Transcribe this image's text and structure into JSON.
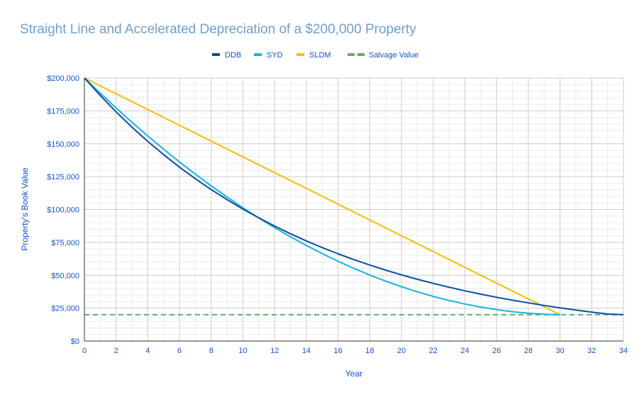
{
  "chart_data": {
    "type": "line",
    "title": "Straight Line and Accelerated Depreciation of a $200,000 Property",
    "xlabel": "Year",
    "ylabel": "Property's Book Value",
    "xlim": [
      0,
      34
    ],
    "ylim": [
      0,
      200000
    ],
    "x_ticks": [
      "0",
      "2",
      "4",
      "6",
      "8",
      "10",
      "12",
      "14",
      "16",
      "18",
      "20",
      "22",
      "24",
      "26",
      "28",
      "30",
      "32",
      "34"
    ],
    "y_ticks": [
      "$0",
      "$25,000",
      "$50,000",
      "$75,000",
      "$100,000",
      "$125,000",
      "$150,000",
      "$175,000",
      "$200,000"
    ],
    "grid": true,
    "legend_position": "top",
    "colors": {
      "title": "#6f9fd0",
      "axis_text": "#1155cc"
    },
    "series": [
      {
        "name": "DDB",
        "color": "#0b4ea2",
        "dashed": false,
        "x": [
          0,
          1,
          2,
          3,
          4,
          5,
          6,
          7,
          8,
          9,
          10,
          11,
          12,
          13,
          14,
          15,
          16,
          17,
          18,
          19,
          20,
          21,
          22,
          23,
          24,
          25,
          26,
          27,
          28,
          29,
          30,
          31,
          32,
          33,
          34
        ],
        "values": [
          200000,
          186667,
          174222,
          162607,
          151767,
          141649,
          132206,
          123392,
          115166,
          107488,
          100322,
          93634,
          87392,
          81566,
          76128,
          71053,
          66316,
          61895,
          57769,
          53918,
          50323,
          46968,
          43837,
          40915,
          38187,
          35641,
          33265,
          31048,
          28978,
          27046,
          25243,
          23560,
          21989,
          20523,
          20000
        ]
      },
      {
        "name": "SYD",
        "color": "#12b5e1",
        "dashed": false,
        "x": [
          0,
          1,
          2,
          3,
          4,
          5,
          6,
          7,
          8,
          9,
          10,
          11,
          12,
          13,
          14,
          15,
          16,
          17,
          18,
          19,
          20,
          21,
          22,
          23,
          24,
          25,
          26,
          27,
          28,
          29,
          30
        ],
        "values": [
          200000,
          188387,
          177161,
          166323,
          155871,
          145806,
          136129,
          126839,
          117935,
          109419,
          101290,
          93548,
          86194,
          79226,
          72645,
          66452,
          60645,
          55226,
          50194,
          45548,
          41290,
          37419,
          33935,
          30839,
          28129,
          25806,
          23871,
          22323,
          21161,
          20387,
          20000
        ]
      },
      {
        "name": "SLDM",
        "color": "#fbbc04",
        "dashed": false,
        "x": [
          0,
          30
        ],
        "values": [
          200000,
          20000
        ]
      },
      {
        "name": "Salvage Value",
        "color": "#57b36a",
        "dashed": true,
        "x": [
          0,
          34
        ],
        "values": [
          20000,
          20000
        ]
      }
    ]
  }
}
